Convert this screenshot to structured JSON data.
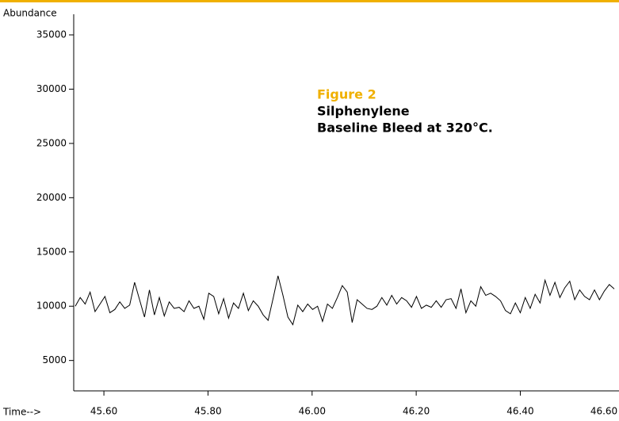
{
  "chart_data": {
    "type": "line",
    "y_label": "Abundance",
    "x_label": "Time-->",
    "annotation": {
      "title": "Figure 2",
      "lines": [
        "Silphenylene",
        "Baseline Bleed at 320°C."
      ]
    },
    "accent_color": "#f0b000",
    "xlim": [
      45.542,
      46.582
    ],
    "xticks": [
      {
        "value": 45.6,
        "label": "45.60"
      },
      {
        "value": 45.8,
        "label": "45.80"
      },
      {
        "value": 46.0,
        "label": "46.00"
      },
      {
        "value": 46.2,
        "label": "46.20"
      },
      {
        "value": 46.4,
        "label": "46.40"
      },
      {
        "value": 46.6,
        "label": "46.60"
      }
    ],
    "ylim": [
      2200,
      36900
    ],
    "yticks": [
      5000,
      10000,
      15000,
      20000,
      25000,
      30000,
      35000
    ],
    "x": [
      45.545,
      45.5545,
      45.564,
      45.5735,
      45.583,
      45.5925,
      45.602,
      45.6115,
      45.621,
      45.6305,
      45.64,
      45.6495,
      45.659,
      45.6685,
      45.678,
      45.6875,
      45.697,
      45.7065,
      45.716,
      45.7255,
      45.735,
      45.7445,
      45.754,
      45.7635,
      45.773,
      45.7825,
      45.792,
      45.8015,
      45.811,
      45.8205,
      45.83,
      45.8395,
      45.849,
      45.8585,
      45.868,
      45.8775,
      45.887,
      45.8965,
      45.906,
      45.9155,
      45.925,
      45.9345,
      45.944,
      45.9535,
      45.963,
      45.9725,
      45.982,
      45.9915,
      46.001,
      46.0105,
      46.02,
      46.0295,
      46.039,
      46.0485,
      46.058,
      46.0675,
      46.077,
      46.0865,
      46.096,
      46.1055,
      46.115,
      46.1245,
      46.134,
      46.1435,
      46.153,
      46.1625,
      46.172,
      46.1815,
      46.191,
      46.2005,
      46.21,
      46.2195,
      46.229,
      46.2385,
      46.248,
      46.2575,
      46.267,
      46.2765,
      46.286,
      46.2955,
      46.305,
      46.3145,
      46.324,
      46.3335,
      46.343,
      46.3525,
      46.362,
      46.3715,
      46.381,
      46.3905,
      46.4,
      46.4095,
      46.419,
      46.4285,
      46.438,
      46.4475,
      46.457,
      46.4665,
      46.476,
      46.4855,
      46.495,
      46.5045,
      46.514,
      46.5235,
      46.533,
      46.5425,
      46.552,
      46.5615,
      46.571,
      46.5805
    ],
    "series": [
      {
        "color": "#000000",
        "values": [
          10000,
          10800,
          10200,
          11300,
          9500,
          10200,
          10900,
          9400,
          9700,
          10400,
          9800,
          10100,
          12200,
          10600,
          9000,
          11500,
          9200,
          10800,
          9100,
          10400,
          9800,
          9900,
          9500,
          10500,
          9800,
          10000,
          8800,
          11200,
          10900,
          9300,
          10700,
          8900,
          10300,
          9800,
          11200,
          9600,
          10500,
          10000,
          9200,
          8700,
          10700,
          12800,
          11000,
          9000,
          8300,
          10100,
          9500,
          10200,
          9700,
          10000,
          8600,
          10200,
          9800,
          10800,
          11900,
          11300,
          8500,
          10600,
          10200,
          9800,
          9700,
          10000,
          10800,
          10100,
          11000,
          10200,
          10800,
          10500,
          9900,
          10900,
          9800,
          10100,
          9900,
          10500,
          9900,
          10600,
          10700,
          9800,
          11600,
          9400,
          10500,
          10000,
          11800,
          11000,
          11200,
          10900,
          10500,
          9600,
          9300,
          10300,
          9400,
          10800,
          9800,
          11100,
          10300,
          12400,
          11000,
          12200,
          10800,
          11700,
          12300,
          10600,
          11500,
          10900,
          10600,
          11500,
          10600,
          11400,
          12000,
          11600
        ]
      }
    ]
  }
}
